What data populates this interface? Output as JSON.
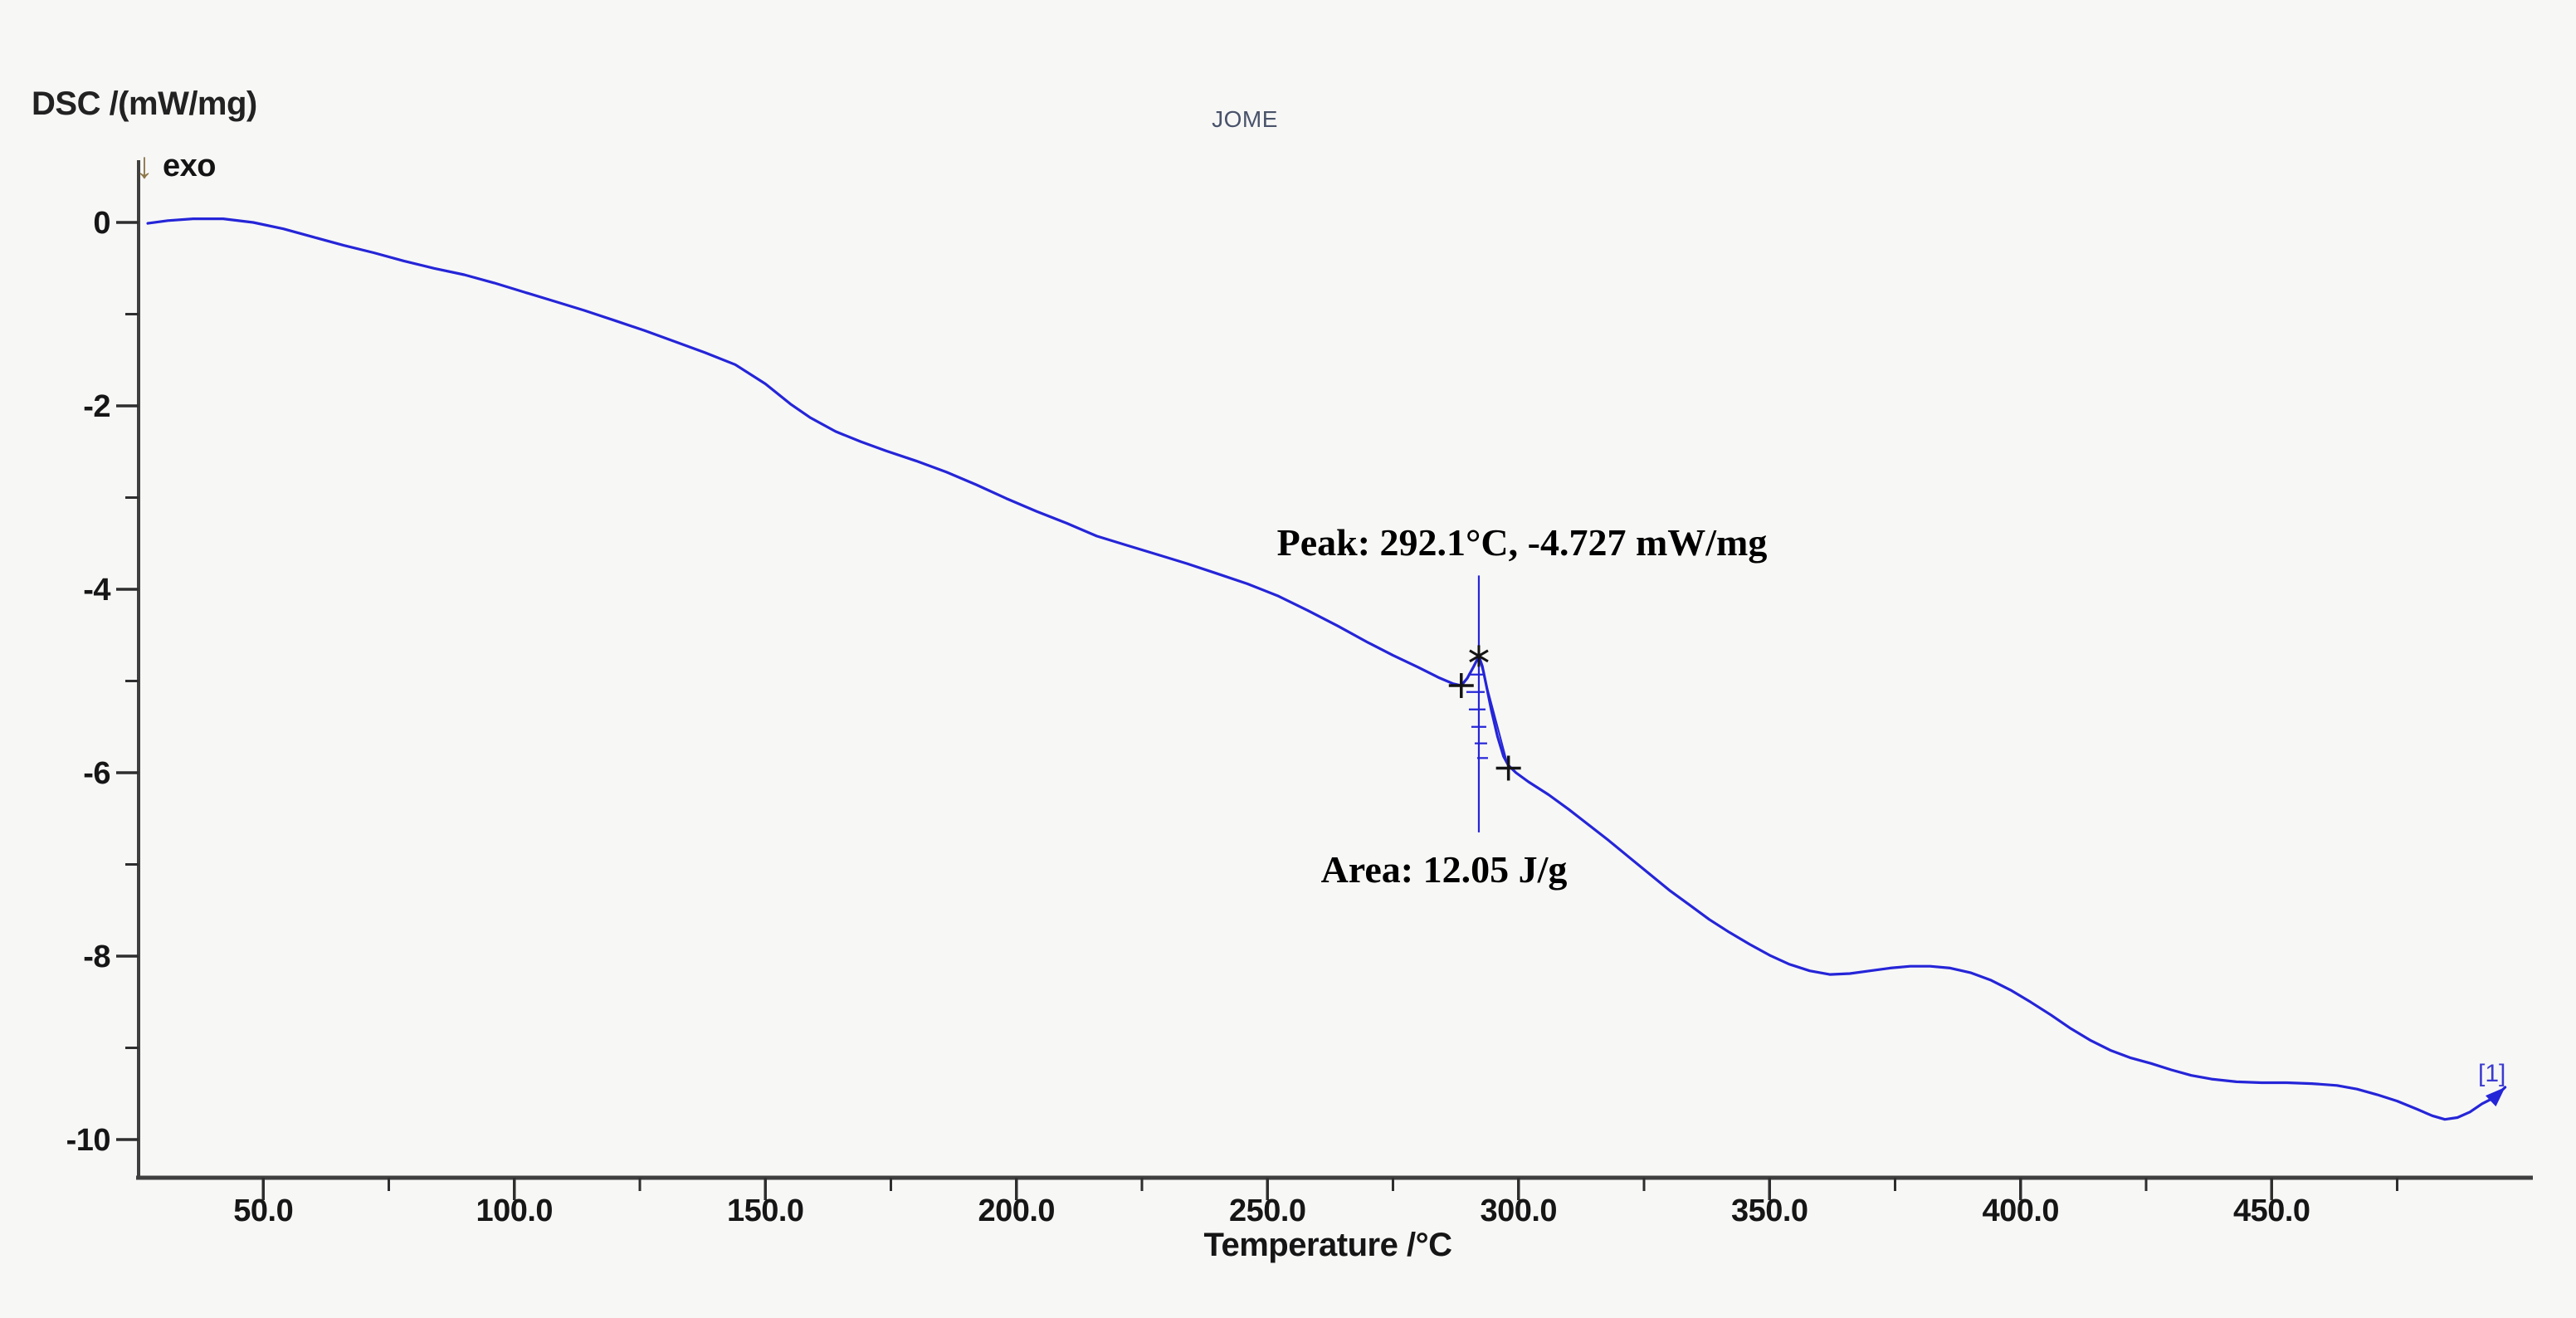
{
  "header": {
    "y_axis_title": "DSC /(mW/mg)",
    "exo_arrow": "↓",
    "exo_text": "exo",
    "sample_name": "JOME"
  },
  "axis": {
    "x_title": "Temperature /°C"
  },
  "annotations": {
    "peak_label": "Peak: 292.1°C, -4.727 mW/mg",
    "area_label": "Area: 12.05 J/g",
    "curve_tag": "[1]"
  },
  "colors": {
    "background": "#f7f7f6",
    "curve": "#2525d8",
    "axis": "#3f3f3f",
    "tick": "#2e2e2e",
    "tick_text": "#161616",
    "annotation_text": "#000000",
    "marker": "#141414",
    "sample_name_text": "#49536a",
    "exo_arrow": "#8d7648",
    "curve_tag_text": "#3b3bd0"
  },
  "chart_data": {
    "type": "line",
    "title": "JOME",
    "xlabel": "Temperature /°C",
    "ylabel": "DSC /(mW/mg)",
    "xlim": [
      25,
      502
    ],
    "ylim": [
      -10.45,
      0.68
    ],
    "grid": false,
    "legend_position": "none",
    "x_major_ticks": [
      50,
      100,
      150,
      200,
      250,
      300,
      350,
      400,
      450
    ],
    "x_major_tick_labels": [
      "50.0",
      "100.0",
      "150.0",
      "200.0",
      "250.0",
      "300.0",
      "350.0",
      "400.0",
      "450.0"
    ],
    "x_minor_ticks": [
      75,
      125,
      175,
      225,
      275,
      325,
      375,
      425,
      475
    ],
    "y_major_ticks": [
      0,
      -2,
      -4,
      -6,
      -8,
      -10
    ],
    "y_major_tick_labels": [
      "0",
      "-2",
      "-4",
      "-6",
      "-8",
      "-10"
    ],
    "y_minor_ticks": [
      -1,
      -3,
      -5,
      -7,
      -9
    ],
    "series": [
      {
        "name": "DSC [1]",
        "color": "#2525d8",
        "points": [
          [
            27,
            -0.01
          ],
          [
            31,
            0.02
          ],
          [
            36,
            0.04
          ],
          [
            42,
            0.04
          ],
          [
            48,
            0.0
          ],
          [
            54,
            -0.07
          ],
          [
            60,
            -0.16
          ],
          [
            66,
            -0.25
          ],
          [
            72,
            -0.33
          ],
          [
            78,
            -0.42
          ],
          [
            84,
            -0.5
          ],
          [
            90,
            -0.57
          ],
          [
            96,
            -0.66
          ],
          [
            102,
            -0.76
          ],
          [
            108,
            -0.86
          ],
          [
            114,
            -0.96
          ],
          [
            120,
            -1.07
          ],
          [
            126,
            -1.18
          ],
          [
            132,
            -1.3
          ],
          [
            138,
            -1.42
          ],
          [
            144,
            -1.55
          ],
          [
            150,
            -1.76
          ],
          [
            155,
            -1.98
          ],
          [
            159,
            -2.13
          ],
          [
            164,
            -2.28
          ],
          [
            169,
            -2.39
          ],
          [
            174,
            -2.49
          ],
          [
            180,
            -2.6
          ],
          [
            186,
            -2.72
          ],
          [
            192,
            -2.86
          ],
          [
            198,
            -3.01
          ],
          [
            204,
            -3.15
          ],
          [
            210,
            -3.28
          ],
          [
            216,
            -3.42
          ],
          [
            222,
            -3.52
          ],
          [
            228,
            -3.62
          ],
          [
            234,
            -3.72
          ],
          [
            240,
            -3.83
          ],
          [
            246,
            -3.94
          ],
          [
            252,
            -4.07
          ],
          [
            258,
            -4.23
          ],
          [
            264,
            -4.4
          ],
          [
            270,
            -4.58
          ],
          [
            275,
            -4.72
          ],
          [
            280,
            -4.85
          ],
          [
            284,
            -4.96
          ],
          [
            287,
            -5.03
          ],
          [
            288.6,
            -5.05
          ],
          [
            289.8,
            -4.97
          ],
          [
            291,
            -4.85
          ],
          [
            292.1,
            -4.73
          ],
          [
            292.8,
            -4.84
          ],
          [
            293.6,
            -5.05
          ],
          [
            294.6,
            -5.32
          ],
          [
            295.8,
            -5.6
          ],
          [
            297,
            -5.82
          ],
          [
            298,
            -5.92
          ],
          [
            299.5,
            -6.0
          ],
          [
            302,
            -6.1
          ],
          [
            306,
            -6.24
          ],
          [
            310,
            -6.4
          ],
          [
            314,
            -6.57
          ],
          [
            318,
            -6.74
          ],
          [
            322,
            -6.92
          ],
          [
            326,
            -7.1
          ],
          [
            330,
            -7.28
          ],
          [
            334,
            -7.44
          ],
          [
            338,
            -7.6
          ],
          [
            342,
            -7.74
          ],
          [
            346,
            -7.87
          ],
          [
            350,
            -7.99
          ],
          [
            354,
            -8.09
          ],
          [
            358,
            -8.16
          ],
          [
            362,
            -8.2
          ],
          [
            366,
            -8.19
          ],
          [
            370,
            -8.16
          ],
          [
            374,
            -8.13
          ],
          [
            378,
            -8.11
          ],
          [
            382,
            -8.11
          ],
          [
            386,
            -8.13
          ],
          [
            390,
            -8.18
          ],
          [
            394,
            -8.26
          ],
          [
            398,
            -8.37
          ],
          [
            402,
            -8.5
          ],
          [
            406,
            -8.64
          ],
          [
            410,
            -8.79
          ],
          [
            414,
            -8.92
          ],
          [
            418,
            -9.03
          ],
          [
            422,
            -9.11
          ],
          [
            426,
            -9.17
          ],
          [
            430,
            -9.24
          ],
          [
            434,
            -9.3
          ],
          [
            438,
            -9.34
          ],
          [
            443,
            -9.37
          ],
          [
            448,
            -9.38
          ],
          [
            453,
            -9.38
          ],
          [
            458,
            -9.39
          ],
          [
            463,
            -9.41
          ],
          [
            467,
            -9.45
          ],
          [
            471,
            -9.51
          ],
          [
            475,
            -9.58
          ],
          [
            479,
            -9.67
          ],
          [
            482,
            -9.74
          ],
          [
            484.5,
            -9.78
          ],
          [
            487,
            -9.76
          ],
          [
            489.5,
            -9.7
          ],
          [
            491.9,
            -9.61
          ],
          [
            494.4,
            -9.54
          ],
          [
            496.5,
            -9.43
          ]
        ]
      }
    ],
    "peak": {
      "label": "Peak: 292.1°C, -4.727 mW/mg",
      "temperature_c": 292.1,
      "value_mw_mg": -4.727,
      "area_label": "Area: 12.05 J/g",
      "area_j_g": 12.05,
      "onset_point": [
        288.6,
        -5.05
      ],
      "end_point": [
        298,
        -5.95
      ],
      "vline_value_range": [
        -3.85,
        -6.65
      ]
    }
  }
}
